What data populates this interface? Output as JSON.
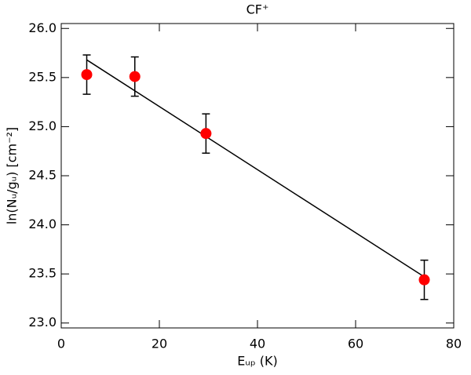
{
  "chart_data": {
    "type": "scatter",
    "title": "CF⁺",
    "x_label": "Eᵤₚ (K)",
    "y_label": "ln(Nᵤ/gᵤ) [cm⁻²]",
    "xlim": [
      0,
      80
    ],
    "xticks": [
      0,
      20,
      40,
      60,
      80
    ],
    "ylim": [
      22.95,
      26.05
    ],
    "yticks": [
      {
        "value": 23,
        "label": "23.0"
      },
      23.5,
      {
        "value": 24,
        "label": "24.0"
      },
      24.5,
      {
        "value": 25,
        "label": "25.0"
      },
      25.5,
      {
        "value": 26,
        "label": "26.0"
      }
    ],
    "points": {
      "x": [
        5.2,
        15,
        29.5,
        74
      ],
      "values": [
        25.53,
        25.51,
        24.93,
        23.44
      ],
      "errors": [
        0.2,
        0.2,
        0.2,
        0.2
      ],
      "color": "#ff0000"
    },
    "fit": {
      "x": [
        5.2,
        74
      ],
      "values": [
        25.68,
        23.47
      ],
      "color": "#000000"
    }
  }
}
